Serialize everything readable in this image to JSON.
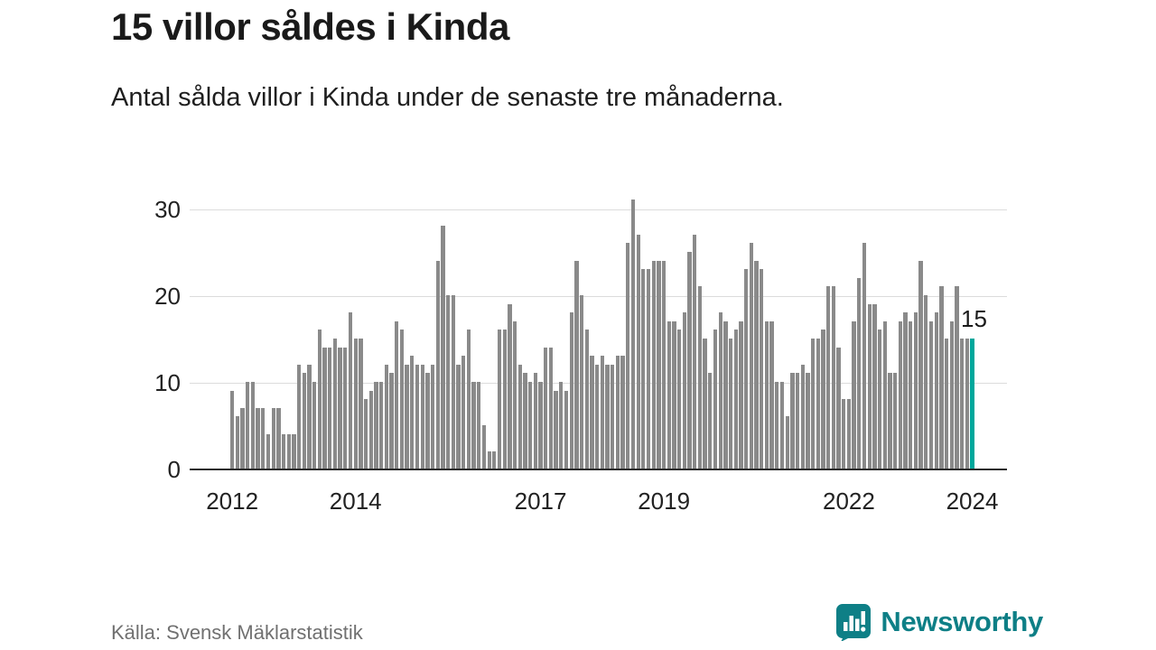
{
  "header": {
    "title": "15 villor såldes i Kinda",
    "subtitle": "Antal sålda villor i Kinda under de senaste tre månaderna."
  },
  "footer": {
    "source": "Källa: Svensk Mäklarstatistik",
    "brand": "Newsworthy"
  },
  "colors": {
    "bar": "#8a8a8a",
    "highlight": "#00a79b",
    "logo": "#0e7f86",
    "grid": "#dcdcdc",
    "axis": "#2b2b2b",
    "text": "#1a1a1a"
  },
  "chart_data": {
    "type": "bar",
    "title": "15 villor såldes i Kinda",
    "subtitle": "Antal sålda villor i Kinda under de senaste tre månaderna.",
    "xlabel": "",
    "ylabel": "",
    "x_start": "2012-01",
    "x_freq": "monthly",
    "ylim": [
      0,
      32
    ],
    "yticks": [
      0,
      10,
      20,
      30
    ],
    "grid": true,
    "legend": "none",
    "values": [
      9,
      6,
      7,
      10,
      10,
      7,
      7,
      4,
      7,
      7,
      4,
      4,
      4,
      12,
      11,
      12,
      10,
      16,
      14,
      14,
      15,
      14,
      14,
      18,
      15,
      15,
      8,
      9,
      10,
      10,
      12,
      11,
      17,
      16,
      12,
      13,
      12,
      12,
      11,
      12,
      24,
      28,
      20,
      20,
      12,
      13,
      16,
      10,
      10,
      5,
      2,
      2,
      16,
      16,
      19,
      17,
      12,
      11,
      10,
      11,
      10,
      14,
      14,
      9,
      10,
      9,
      18,
      24,
      20,
      16,
      13,
      12,
      13,
      12,
      12,
      13,
      13,
      26,
      31,
      27,
      23,
      23,
      24,
      24,
      24,
      17,
      17,
      16,
      18,
      25,
      27,
      21,
      15,
      11,
      16,
      18,
      17,
      15,
      16,
      17,
      23,
      26,
      24,
      23,
      17,
      17,
      10,
      10,
      6,
      11,
      11,
      12,
      11,
      15,
      15,
      16,
      21,
      21,
      14,
      8,
      8,
      17,
      22,
      26,
      19,
      19,
      16,
      17,
      11,
      11,
      17,
      18,
      17,
      18,
      24,
      20,
      17,
      18,
      21,
      15,
      17,
      21,
      15,
      15,
      15
    ],
    "highlight_index": 144,
    "highlight_value": 15,
    "annotation": "15",
    "xticks": [
      {
        "label": "2012",
        "index": 0
      },
      {
        "label": "2014",
        "index": 24
      },
      {
        "label": "2017",
        "index": 60
      },
      {
        "label": "2019",
        "index": 84
      },
      {
        "label": "2022",
        "index": 120
      },
      {
        "label": "2024",
        "index": 144
      }
    ]
  }
}
